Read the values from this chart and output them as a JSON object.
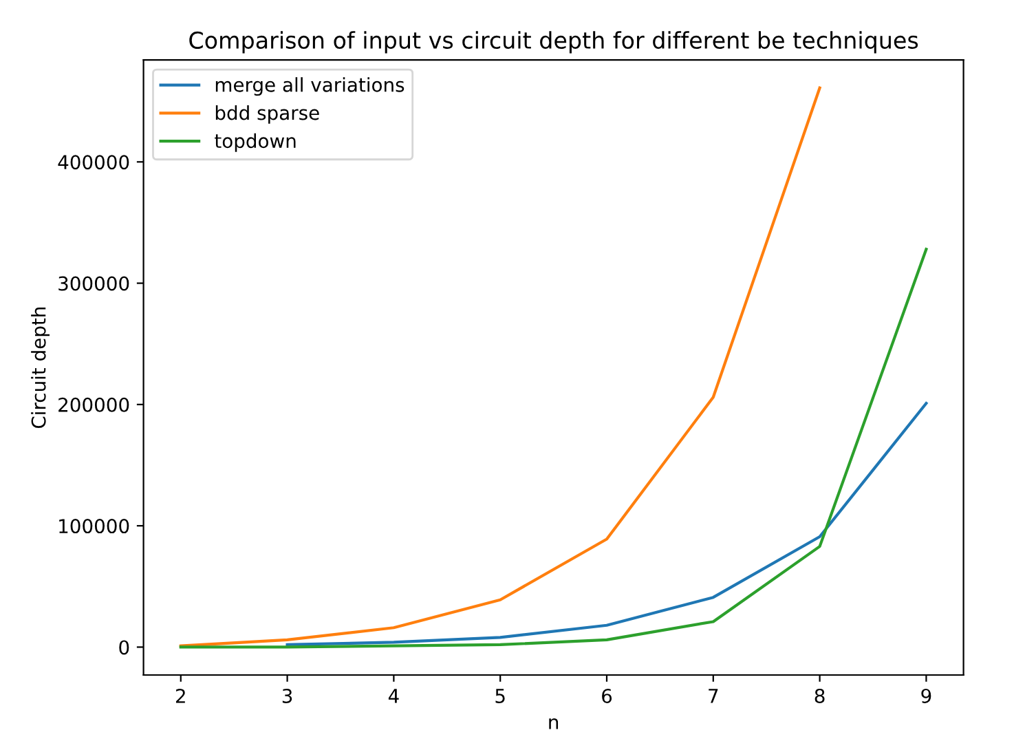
{
  "chart_data": {
    "type": "line",
    "title": "Comparison of input vs circuit depth for different be techniques",
    "xlabel": "n",
    "ylabel": "Circuit depth",
    "x": [
      2,
      3,
      4,
      5,
      6,
      7,
      8,
      9
    ],
    "series": [
      {
        "name": "merge all variations",
        "color": "#1f77b4",
        "values": [
          null,
          2000,
          4000,
          8000,
          18000,
          41000,
          91000,
          201000
        ]
      },
      {
        "name": "bdd sparse",
        "color": "#ff7f0e",
        "values": [
          1000,
          6000,
          16000,
          39000,
          89000,
          206000,
          461000,
          null
        ]
      },
      {
        "name": "topdown",
        "color": "#2ca02c",
        "values": [
          0,
          0,
          1000,
          2000,
          6000,
          21000,
          83000,
          328000
        ]
      }
    ],
    "xlim": [
      1.65,
      9.35
    ],
    "xticks": [
      2,
      3,
      4,
      5,
      6,
      7,
      8,
      9
    ],
    "ylim": [
      -23000,
      484000
    ],
    "yticks": [
      0,
      100000,
      200000,
      300000,
      400000
    ],
    "grid": false,
    "legend": "top left",
    "marker": "none",
    "line_style": "solid"
  }
}
